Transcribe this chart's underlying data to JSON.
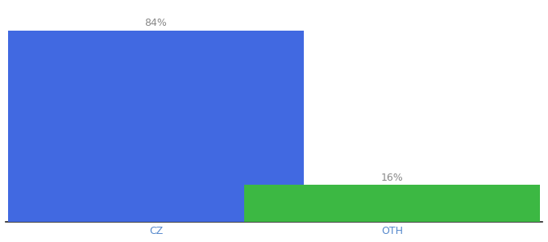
{
  "categories": [
    "CZ",
    "OTH"
  ],
  "values": [
    84,
    16
  ],
  "bar_colors": [
    "#4169E1",
    "#3CB843"
  ],
  "bar_labels": [
    "84%",
    "16%"
  ],
  "background_color": "#ffffff",
  "ylim": [
    0,
    95
  ],
  "bar_width": 0.55,
  "label_fontsize": 9,
  "tick_fontsize": 9,
  "tick_color": "#5588cc",
  "label_color": "#888888",
  "x_positions": [
    0.28,
    0.72
  ]
}
